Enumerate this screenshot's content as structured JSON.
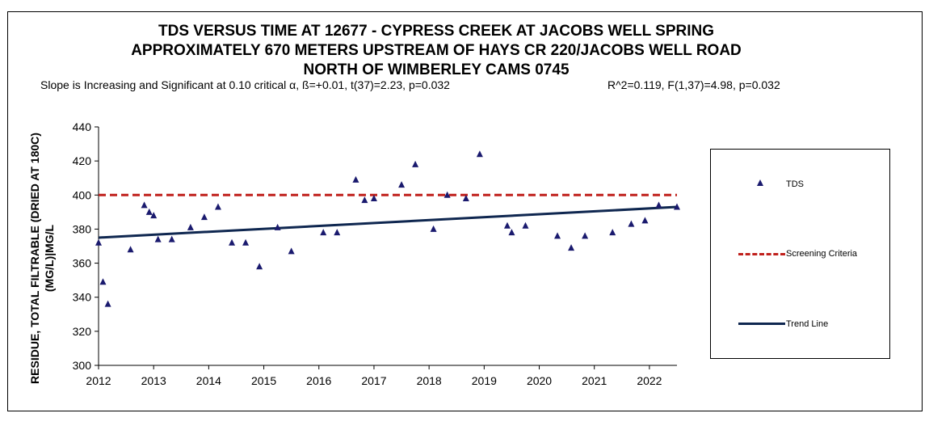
{
  "chart_data": {
    "type": "scatter",
    "title_lines": [
      "TDS VERSUS  TIME AT 12677 - CYPRESS CREEK AT JACOBS WELL SPRING",
      "APPROXIMATELY 670 METERS UPSTREAM OF HAYS CR 220/JACOBS WELL ROAD",
      "NORTH OF WIMBERLEY CAMS 0745"
    ],
    "stats_left": "Slope is Increasing and Significant at 0.10 critical α, ß=+0.01, t(37)=2.23, p=0.032",
    "stats_right": "R^2=0.119,  F(1,37)=4.98, p=0.032",
    "ylabel": "RESIDUE, TOTAL  FILTRABLE  (DRIED AT 180C)\n(MG/L)|MG/L",
    "xlabel": "",
    "xlim": [
      2012,
      2022.5
    ],
    "ylim": [
      300,
      440
    ],
    "xticks": [
      "2012",
      "2013",
      "2014",
      "2015",
      "2016",
      "2017",
      "2018",
      "2019",
      "2020",
      "2021",
      "2022"
    ],
    "yticks": [
      "300",
      "320",
      "340",
      "360",
      "380",
      "400",
      "420",
      "440"
    ],
    "series": [
      {
        "name": "TDS",
        "kind": "scatter",
        "color": "#1a1a6e",
        "x": [
          2012.0,
          2012.08,
          2012.17,
          2012.58,
          2012.83,
          2012.92,
          2013.0,
          2013.08,
          2013.33,
          2013.67,
          2013.92,
          2014.17,
          2014.42,
          2014.67,
          2014.92,
          2015.25,
          2015.5,
          2016.08,
          2016.33,
          2016.67,
          2016.83,
          2017.0,
          2017.5,
          2017.75,
          2018.08,
          2018.33,
          2018.67,
          2018.92,
          2019.42,
          2019.5,
          2019.75,
          2020.33,
          2020.58,
          2020.83,
          2021.33,
          2021.67,
          2021.92,
          2022.17,
          2022.5
        ],
        "y": [
          372,
          349,
          336,
          368,
          394,
          390,
          388,
          374,
          374,
          381,
          387,
          393,
          372,
          372,
          358,
          381,
          367,
          378,
          378,
          409,
          397,
          398,
          406,
          418,
          380,
          400,
          398,
          424,
          382,
          378,
          382,
          376,
          369,
          376,
          378,
          383,
          385,
          394,
          393
        ]
      },
      {
        "name": "Screening Criteria",
        "kind": "line",
        "color": "#c0201c",
        "dashed": true,
        "x": [
          2012,
          2022.5
        ],
        "y": [
          400,
          400
        ]
      },
      {
        "name": "Trend Line",
        "kind": "line",
        "color": "#0f2750",
        "x": [
          2012,
          2022.5
        ],
        "y": [
          375,
          393
        ]
      }
    ],
    "legend": {
      "position": "right",
      "entries": [
        "TDS",
        "Screening Criteria",
        "Trend Line"
      ]
    },
    "grid": false
  }
}
